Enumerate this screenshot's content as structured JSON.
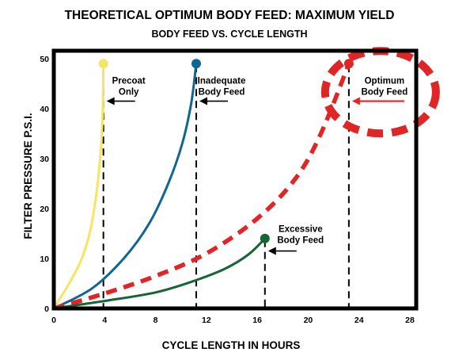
{
  "chart_data": {
    "type": "line",
    "title": "THEORETICAL OPTIMUM BODY FEED: MAXIMUM YIELD",
    "subtitle": "BODY FEED VS. CYCLE LENGTH",
    "xlabel": "CYCLE LENGTH IN HOURS",
    "ylabel": "FILTER PRESSURE P.S.I.",
    "xlim": [
      0,
      28
    ],
    "ylim": [
      0,
      50
    ],
    "xticks": [
      0,
      4,
      8,
      12,
      16,
      20,
      24,
      28
    ],
    "yticks": [
      0,
      10,
      20,
      30,
      40,
      50
    ],
    "grid": false,
    "series": [
      {
        "name": "Precoat Only",
        "color": "#f7e463",
        "style": "solid",
        "points": [
          [
            0,
            0
          ],
          [
            1.2,
            5
          ],
          [
            2.2,
            10
          ],
          [
            2.9,
            16
          ],
          [
            3.4,
            24
          ],
          [
            3.7,
            32
          ],
          [
            3.85,
            40
          ],
          [
            3.9,
            49
          ]
        ],
        "endpoint": [
          3.9,
          49
        ],
        "cycle_end": 3.9
      },
      {
        "name": "Inadequate Body Feed",
        "color": "#0f6692",
        "style": "solid",
        "points": [
          [
            0,
            0
          ],
          [
            3,
            4
          ],
          [
            5.5,
            10
          ],
          [
            7.5,
            17
          ],
          [
            9,
            25
          ],
          [
            10.1,
            33
          ],
          [
            10.8,
            41
          ],
          [
            11.2,
            49
          ]
        ],
        "endpoint": [
          11.2,
          49
        ],
        "cycle_end": 11.2
      },
      {
        "name": "Optimum Body Feed",
        "color": "#e02527",
        "style": "dashed",
        "points": [
          [
            0,
            0
          ],
          [
            4,
            3
          ],
          [
            8,
            6.5
          ],
          [
            12,
            11
          ],
          [
            16,
            18
          ],
          [
            19,
            26
          ],
          [
            21,
            35
          ],
          [
            23.2,
            49
          ]
        ],
        "endpoint": [
          23.2,
          49
        ],
        "cycle_end": 23.2
      },
      {
        "name": "Excessive Body Feed",
        "color": "#176437",
        "style": "solid",
        "points": [
          [
            0,
            0
          ],
          [
            4,
            1.5
          ],
          [
            8,
            3.2
          ],
          [
            11,
            5.5
          ],
          [
            13.5,
            8
          ],
          [
            15.3,
            10.8
          ],
          [
            16.6,
            14
          ]
        ],
        "endpoint": [
          16.6,
          14
        ],
        "cycle_end": 16.6
      }
    ],
    "annotations": [
      {
        "id": "precoat",
        "lines": [
          "Precoat",
          "Only"
        ],
        "pointer_x": 3.9,
        "pointer_y": 41.5
      },
      {
        "id": "inadequate",
        "lines": [
          "Inadequate",
          "Body Feed"
        ],
        "pointer_x": 11.2,
        "pointer_y": 41.5
      },
      {
        "id": "optimum",
        "lines": [
          "Optimum",
          "Body Feed"
        ],
        "pointer_x": 23.2,
        "pointer_y": 41.5
      },
      {
        "id": "excessive",
        "lines": [
          "Excessive",
          "Body Feed"
        ],
        "pointer_x": 16.6,
        "pointer_y": 11.5
      }
    ]
  }
}
